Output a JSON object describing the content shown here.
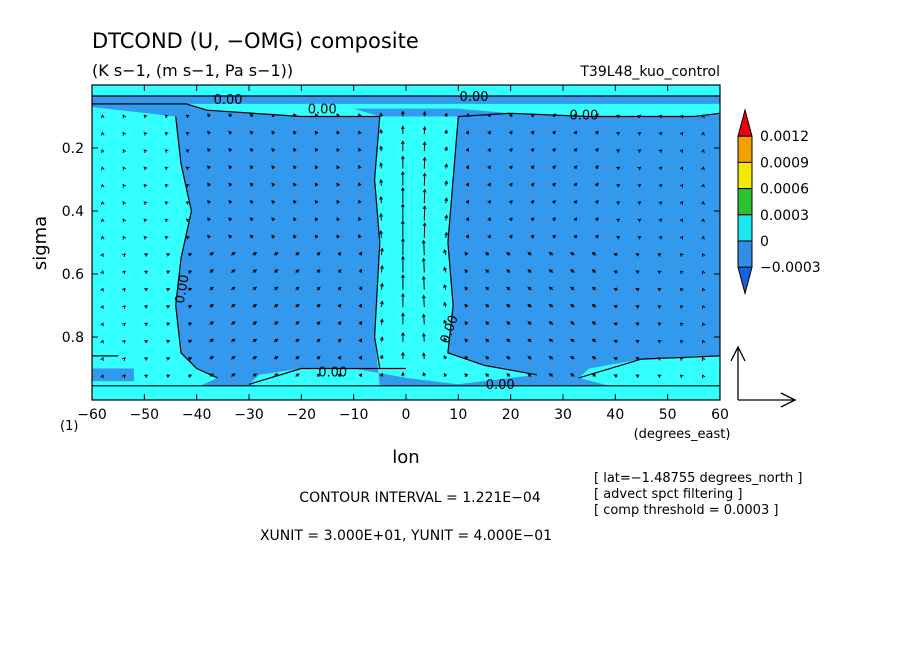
{
  "chart_data": {
    "type": "heatmap",
    "title": "DTCOND (U, −OMG) composite",
    "subtitle": "(K s−1, (m s−1, Pa s−1))",
    "run_label": "T39L48_kuo_control",
    "xlabel": "lon",
    "xunit_label": "(degrees_east)",
    "ylabel": "sigma",
    "xlim": [
      -60,
      60
    ],
    "ylim": [
      1.0,
      0.0
    ],
    "x_ticks": [
      -60,
      -50,
      -40,
      -30,
      -20,
      -10,
      0,
      10,
      20,
      30,
      40,
      50,
      60
    ],
    "x_tick_labels": [
      "−60",
      "−50",
      "−40",
      "−30",
      "−20",
      "−10",
      "0",
      "10",
      "20",
      "30",
      "40",
      "50",
      "60"
    ],
    "y_ticks": [
      0.2,
      0.4,
      0.6,
      0.8
    ],
    "y_tick_labels": [
      "0.2",
      "0.4",
      "0.6",
      "0.8"
    ],
    "corner_label": "(1)",
    "colorbar": {
      "labels": [
        "0.0012",
        "0.0009",
        "0.0006",
        "0.0003",
        "0",
        "−0.0003"
      ],
      "colors": [
        "#e8000b",
        "#f5a000",
        "#f2ea00",
        "#2cc42c",
        "#18e8f0",
        "#2f8ee8",
        "#1a5fe0"
      ]
    },
    "contour_labels": [
      "0.00",
      "0.00",
      "0.00",
      "0.00",
      "0.00",
      "0.00",
      "0.00",
      "0.00"
    ],
    "shading": {
      "negative_color": "#3399ee",
      "positive_color": "#33ffff",
      "negative_regions": [
        {
          "lon": [
            -44,
            -5
          ],
          "sigma": [
            0.1,
            0.88
          ]
        },
        {
          "lon": [
            10,
            60
          ],
          "sigma": [
            0.1,
            0.88
          ]
        }
      ],
      "positive_regions": [
        {
          "lon": [
            -60,
            -44
          ],
          "sigma": [
            0.1,
            0.95
          ]
        },
        {
          "lon": [
            -5,
            10
          ],
          "sigma": [
            0.1,
            0.9
          ]
        }
      ]
    },
    "vector_reference": {
      "xunit": 30.0,
      "yunit": 0.4
    }
  },
  "notes": {
    "contour_interval": "CONTOUR INTERVAL = 1.221E−04",
    "units": "XUNIT = 3.000E+01, YUNIT = 4.000E−01",
    "lat": "[ lat=−1.48755 degrees_north ]",
    "filter": "[ advect spct filtering ]",
    "threshold": "[ comp threshold = 0.0003 ]"
  }
}
